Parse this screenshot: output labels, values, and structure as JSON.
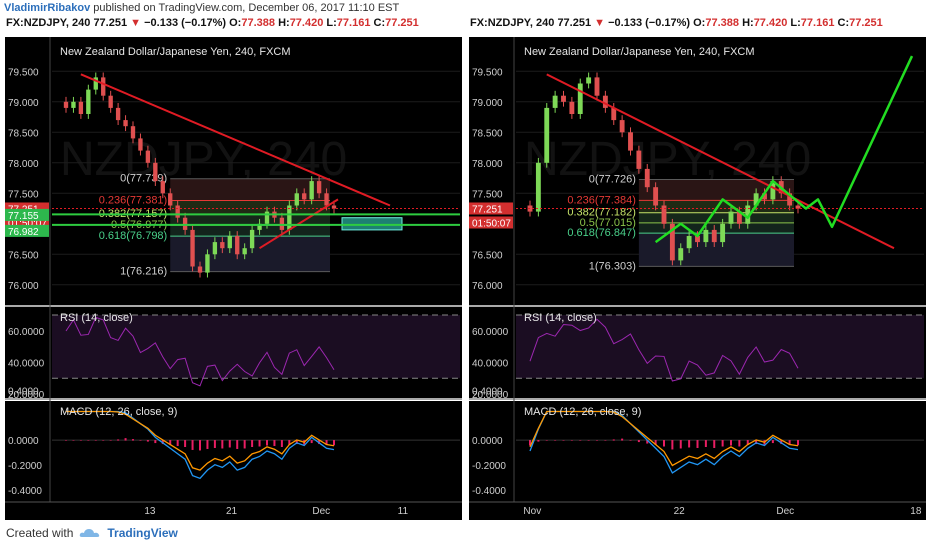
{
  "header": {
    "author": "VladimirRibakov",
    "published": "published on TradingView.com, December 06, 2017 11:10 EST"
  },
  "footer": {
    "created_with": "Created with",
    "brand": "TradingView"
  },
  "colors": {
    "background": "#000000",
    "candle_up": "#7ed957",
    "candle_down": "#e05050",
    "trendline": "#e01b24",
    "projection": "#22dd22",
    "rsi_line": "#9c27b0",
    "macd_line": "#2196f3",
    "signal_line": "#ff9800",
    "histogram": "#e91e63",
    "fib_label": "#cfcfcf",
    "fib_236": "#e53935",
    "fib_382": "#c6e36a",
    "fib_618": "#4ad08a"
  },
  "panels": [
    {
      "id": "left",
      "ohlc": {
        "symbol": "FX:NZDJPY, 240",
        "last": "77.251",
        "arrow": "▼",
        "change": "−0.133 (−0.17%)",
        "o_label": "O:",
        "o": "77.388",
        "h_label": "H:",
        "h": "77.420",
        "l_label": "L:",
        "l": "77.161",
        "c_label": "C:",
        "c": "77.251"
      },
      "chart_title": "New Zealand Dollar/Japanese Yen, 240, FXCM",
      "watermark": "NZDJPY, 240",
      "price_ticks": [
        "79.500",
        "79.000",
        "78.500",
        "78.000",
        "77.500",
        "76.500",
        "76.000"
      ],
      "price_tags": [
        {
          "text": "77.251",
          "color": "#d32f2f"
        },
        {
          "text": "01:50:07",
          "color": "#d32f2f"
        },
        {
          "text": "77.155",
          "color": "#2db84d"
        },
        {
          "text": "76.982",
          "color": "#2db84d"
        }
      ],
      "fib_labels": [
        "0(77.739)",
        "0.236(77.381)",
        "0.382(77.157)",
        "0.5(76.977)",
        "0.618(76.798)",
        "1(76.216)"
      ],
      "rsi_title": "RSI (14, close)",
      "rsi_ticks": [
        "60.0000",
        "40.0000",
        "20.0000"
      ],
      "macd_title": "MACD (12, 26, close, 9)",
      "macd_ticks": [
        "0.4000",
        "0.0000",
        "-0.2000",
        "-0.4000"
      ],
      "time_ticks": [
        "13",
        "21",
        "Dec",
        "11"
      ]
    },
    {
      "id": "right",
      "ohlc": {
        "symbol": "FX:NZDJPY, 240",
        "last": "77.251",
        "arrow": "▼",
        "change": "−0.133 (−0.17%)",
        "o_label": "O:",
        "o": "77.388",
        "h_label": "H:",
        "h": "77.420",
        "l_label": "L:",
        "l": "77.161",
        "c_label": "C:",
        "c": "77.251"
      },
      "chart_title": "New Zealand Dollar/Japanese Yen, 240, FXCM",
      "watermark": "NZDJPY, 240",
      "price_ticks": [
        "79.500",
        "79.000",
        "78.500",
        "78.000",
        "77.500",
        "76.500",
        "76.000"
      ],
      "price_tags": [
        {
          "text": "77.251",
          "color": "#d32f2f"
        },
        {
          "text": "01:50:07",
          "color": "#d32f2f"
        }
      ],
      "fib_labels": [
        "0(77.726)",
        "0.236(77.384)",
        "0.382(77.182)",
        "0.5(77.015)",
        "0.618(76.847)",
        "1(76.303)"
      ],
      "rsi_title": "RSI (14, close)",
      "rsi_ticks": [
        "60.0000",
        "40.0000",
        "20.0000"
      ],
      "macd_title": "MACD (12, 26, close, 9)",
      "macd_ticks": [
        "0.4000",
        "0.0000",
        "-0.2000",
        "-0.4000"
      ],
      "time_ticks": [
        "Nov",
        "22",
        "Dec",
        "18"
      ]
    }
  ],
  "chart_data": [
    {
      "type": "candlestick",
      "title": "New Zealand Dollar/Japanese Yen, 240, FXCM",
      "ylim": [
        75.8,
        79.8
      ],
      "close_approx": [
        78.9,
        79.0,
        78.8,
        79.2,
        79.4,
        79.1,
        78.9,
        78.7,
        78.6,
        78.4,
        78.2,
        78.0,
        77.7,
        77.5,
        77.3,
        77.1,
        76.9,
        76.3,
        76.2,
        76.5,
        76.7,
        76.6,
        76.8,
        76.5,
        76.6,
        76.9,
        77.0,
        77.2,
        77.1,
        76.9,
        77.3,
        77.5,
        77.4,
        77.7,
        77.5,
        77.3,
        77.25
      ],
      "fibonacci": [
        {
          "level": 0,
          "price": 77.739
        },
        {
          "level": 0.236,
          "price": 77.381
        },
        {
          "level": 0.382,
          "price": 77.157
        },
        {
          "level": 0.5,
          "price": 76.977
        },
        {
          "level": 0.618,
          "price": 76.798
        },
        {
          "level": 1,
          "price": 76.216
        }
      ],
      "rsi_range": [
        20,
        70
      ],
      "macd_range": [
        -0.45,
        0.25
      ],
      "time_ticks": [
        "13",
        "21",
        "Dec",
        "11"
      ]
    },
    {
      "type": "candlestick",
      "title": "New Zealand Dollar/Japanese Yen, 240, FXCM",
      "ylim": [
        75.8,
        79.8
      ],
      "close_approx": [
        77.2,
        78.0,
        78.9,
        79.1,
        79.0,
        78.8,
        79.3,
        79.4,
        79.1,
        78.9,
        78.7,
        78.5,
        78.2,
        77.9,
        77.6,
        77.3,
        77.0,
        76.4,
        76.6,
        76.8,
        76.7,
        76.9,
        76.7,
        77.0,
        77.2,
        77.0,
        77.3,
        77.5,
        77.4,
        77.7,
        77.5,
        77.3,
        77.25
      ],
      "fibonacci": [
        {
          "level": 0,
          "price": 77.726
        },
        {
          "level": 0.236,
          "price": 77.384
        },
        {
          "level": 0.382,
          "price": 77.182
        },
        {
          "level": 0.5,
          "price": 77.015
        },
        {
          "level": 0.618,
          "price": 76.847
        },
        {
          "level": 1,
          "price": 76.303
        }
      ],
      "rsi_range": [
        20,
        70
      ],
      "macd_range": [
        -0.45,
        0.25
      ],
      "time_ticks": [
        "Nov",
        "22",
        "Dec",
        "18"
      ]
    }
  ]
}
